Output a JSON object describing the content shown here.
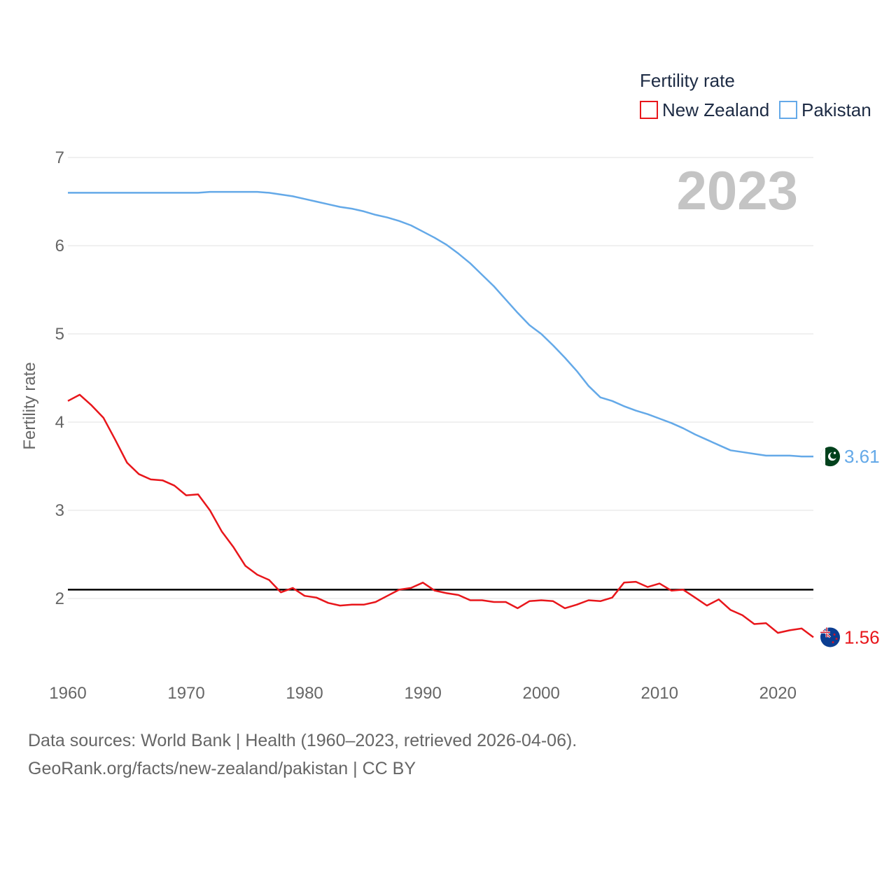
{
  "chart_data": {
    "type": "line",
    "title": "",
    "ylabel": "Fertility rate",
    "xlabel": "",
    "xlim": [
      1960,
      2023
    ],
    "ylim": [
      1.3,
      7.0
    ],
    "y_ticks": [
      2,
      3,
      4,
      5,
      6,
      7
    ],
    "x_ticks": [
      1960,
      1970,
      1980,
      1990,
      2000,
      2010,
      2020
    ],
    "year_label": "2023",
    "legend": {
      "title": "Fertility rate",
      "position": "top-right"
    },
    "reference_line": {
      "y": 2.1
    },
    "x": [
      1960,
      1961,
      1962,
      1963,
      1964,
      1965,
      1966,
      1967,
      1968,
      1969,
      1970,
      1971,
      1972,
      1973,
      1974,
      1975,
      1976,
      1977,
      1978,
      1979,
      1980,
      1981,
      1982,
      1983,
      1984,
      1985,
      1986,
      1987,
      1988,
      1989,
      1990,
      1991,
      1992,
      1993,
      1994,
      1995,
      1996,
      1997,
      1998,
      1999,
      2000,
      2001,
      2002,
      2003,
      2004,
      2005,
      2006,
      2007,
      2008,
      2009,
      2010,
      2011,
      2012,
      2013,
      2014,
      2015,
      2016,
      2017,
      2018,
      2019,
      2020,
      2021,
      2022,
      2023
    ],
    "series": [
      {
        "name": "New Zealand",
        "color": "#e8161b",
        "flag_icon": "new-zealand-flag-icon",
        "end_label": "1.56",
        "values": [
          4.24,
          4.31,
          4.19,
          4.05,
          3.8,
          3.54,
          3.41,
          3.35,
          3.34,
          3.28,
          3.17,
          3.18,
          3.0,
          2.76,
          2.58,
          2.37,
          2.27,
          2.21,
          2.07,
          2.12,
          2.03,
          2.01,
          1.95,
          1.92,
          1.93,
          1.93,
          1.96,
          2.03,
          2.1,
          2.12,
          2.18,
          2.09,
          2.06,
          2.04,
          1.98,
          1.98,
          1.96,
          1.96,
          1.89,
          1.97,
          1.98,
          1.97,
          1.89,
          1.93,
          1.98,
          1.97,
          2.01,
          2.18,
          2.19,
          2.13,
          2.17,
          2.09,
          2.1,
          2.01,
          1.92,
          1.99,
          1.87,
          1.81,
          1.71,
          1.72,
          1.61,
          1.64,
          1.66,
          1.56
        ]
      },
      {
        "name": "Pakistan",
        "color": "#64a9e8",
        "flag_icon": "pakistan-flag-icon",
        "end_label": "3.61",
        "values": [
          6.6,
          6.6,
          6.6,
          6.6,
          6.6,
          6.6,
          6.6,
          6.6,
          6.6,
          6.6,
          6.6,
          6.6,
          6.61,
          6.61,
          6.61,
          6.61,
          6.61,
          6.6,
          6.58,
          6.56,
          6.53,
          6.5,
          6.47,
          6.44,
          6.42,
          6.39,
          6.35,
          6.32,
          6.28,
          6.23,
          6.16,
          6.09,
          6.01,
          5.91,
          5.8,
          5.67,
          5.54,
          5.39,
          5.24,
          5.1,
          5.0,
          4.87,
          4.73,
          4.58,
          4.41,
          4.28,
          4.24,
          4.18,
          4.13,
          4.09,
          4.04,
          3.99,
          3.93,
          3.86,
          3.8,
          3.74,
          3.68,
          3.66,
          3.64,
          3.62,
          3.62,
          3.62,
          3.61,
          3.61
        ]
      }
    ]
  },
  "source": {
    "line1": "Data sources: World Bank | Health (1960–2023, retrieved 2026-04-06).",
    "line2": "GeoRank.org/facts/new-zealand/pakistan | CC BY"
  }
}
